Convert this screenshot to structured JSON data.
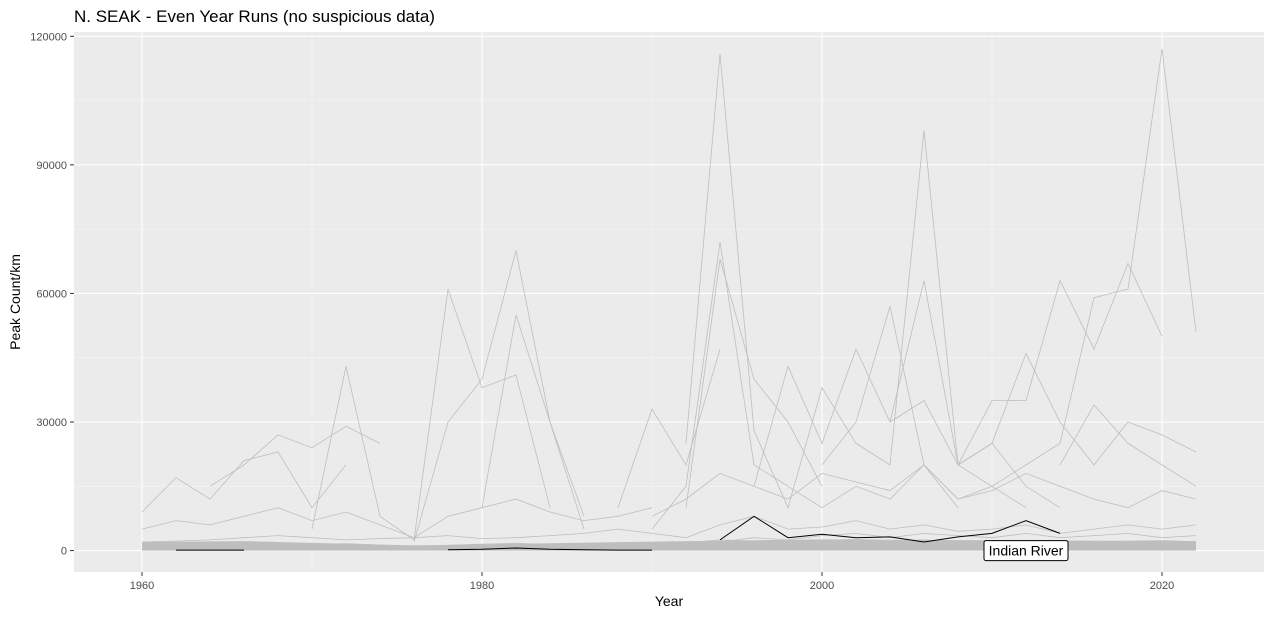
{
  "chart_data": {
    "type": "line",
    "title": "N. SEAK - Even Year Runs (no suspicious data)",
    "xlabel": "Year",
    "ylabel": "Peak Count/km",
    "xlim": [
      1956,
      2026
    ],
    "ylim": [
      -5000,
      121000
    ],
    "x_ticks": [
      1960,
      1980,
      2000,
      2020
    ],
    "x_tick_labels": [
      "1960",
      "1980",
      "2000",
      "2020"
    ],
    "y_ticks": [
      0,
      30000,
      60000,
      90000,
      120000
    ],
    "y_tick_labels": [
      "0",
      "30000",
      "60000",
      "90000",
      "120000"
    ],
    "grid": true,
    "legend": "none",
    "colors": {
      "panel": "#ebebeb",
      "background_series": "#bebebe",
      "highlight_series": "#000000"
    },
    "series": [
      {
        "x": [
          1960,
          1962,
          1964,
          1966,
          1968,
          1970,
          1972,
          1974,
          1976,
          1978,
          1980,
          1982,
          1984,
          1986,
          1988,
          1990,
          1992,
          1994,
          1996,
          1998,
          2000,
          2002,
          2004,
          2006,
          2008,
          2010,
          2012,
          2014,
          2016,
          2018,
          2020,
          2022
        ],
        "y": [
          2000,
          2200,
          2500,
          3000,
          3500,
          3000,
          2500,
          2800,
          3000,
          3500,
          2800,
          3000,
          3500,
          4000,
          5000,
          4000,
          3000,
          6000,
          8000,
          5000,
          5500,
          7000,
          5000,
          6000,
          4500,
          5000,
          6000,
          4000,
          5000,
          6000,
          5000,
          6000
        ]
      },
      {
        "x": [
          1994,
          1996,
          1998,
          2000,
          2002,
          2004,
          2006,
          2008,
          2010,
          2012,
          2014,
          2016,
          2018,
          2020,
          2022
        ],
        "y": [
          2000,
          3000,
          2500,
          3500,
          4000,
          3000,
          4000,
          3500,
          3000,
          4000,
          3000,
          3500,
          4000,
          3000,
          3500
        ]
      },
      {
        "x": [
          1992,
          1994,
          1996,
          1998,
          2000,
          2002,
          2004,
          2006,
          2008,
          2010,
          2012,
          2014
        ],
        "y": [
          25000,
          116000,
          28000,
          10000,
          38000,
          25000,
          20000,
          98000,
          20000,
          25000,
          15000,
          10000
        ]
      },
      {
        "x": [
          2000,
          2002,
          2004,
          2006,
          2008,
          2010,
          2012,
          2014,
          2016,
          2018,
          2020,
          2022
        ],
        "y": [
          10000,
          15000,
          12000,
          20000,
          12000,
          15000,
          20000,
          25000,
          59000,
          61000,
          117000,
          51000
        ]
      },
      {
        "x": [
          1970,
          1972,
          1974,
          1976,
          1978,
          1980,
          1982,
          1984
        ],
        "y": [
          5000,
          43000,
          8000,
          2500,
          61000,
          38000,
          41000,
          10000
        ]
      },
      {
        "x": [
          1976,
          1978,
          1980,
          1982,
          1984,
          1986
        ],
        "y": [
          2000,
          30000,
          40000,
          70000,
          30000,
          8000
        ]
      },
      {
        "x": [
          1980,
          1982,
          1984,
          1986
        ],
        "y": [
          10000,
          55000,
          30000,
          5000
        ]
      },
      {
        "x": [
          1990,
          1992,
          1994,
          1996,
          1998,
          2000
        ],
        "y": [
          5000,
          15000,
          72000,
          20000,
          15000,
          10000
        ]
      },
      {
        "x": [
          1992,
          1994,
          1996,
          1998,
          2000
        ],
        "y": [
          10000,
          68000,
          40000,
          30000,
          15000
        ]
      },
      {
        "x": [
          2000,
          2002,
          2004,
          2006,
          2008
        ],
        "y": [
          20000,
          30000,
          57000,
          20000,
          10000
        ]
      },
      {
        "x": [
          2004,
          2006,
          2008,
          2010,
          2012
        ],
        "y": [
          30000,
          63000,
          20000,
          15000,
          10000
        ]
      },
      {
        "x": [
          2008,
          2010,
          2012,
          2014,
          2016,
          2018,
          2020
        ],
        "y": [
          20000,
          35000,
          35000,
          63000,
          47000,
          67000,
          50000
        ]
      },
      {
        "x": [
          1964,
          1966,
          1968,
          1970,
          1972,
          1974
        ],
        "y": [
          15000,
          20000,
          27000,
          24000,
          29000,
          25000
        ]
      },
      {
        "x": [
          1960,
          1962,
          1964,
          1966,
          1968,
          1970,
          1972
        ],
        "y": [
          9000,
          17000,
          12000,
          21000,
          23000,
          10000,
          20000
        ]
      },
      {
        "x": [
          1988,
          1990,
          1992,
          1994
        ],
        "y": [
          10000,
          33000,
          20000,
          47000
        ]
      },
      {
        "x": [
          2010,
          2012,
          2014,
          2016,
          2018,
          2020,
          2022
        ],
        "y": [
          25000,
          46000,
          30000,
          20000,
          30000,
          27000,
          23000
        ]
      },
      {
        "x": [
          1996,
          1998,
          2000,
          2002,
          2004,
          2006,
          2008,
          2010
        ],
        "y": [
          15000,
          43000,
          25000,
          47000,
          30000,
          35000,
          20000,
          25000
        ]
      },
      {
        "x": [
          2014,
          2016,
          2018,
          2020,
          2022
        ],
        "y": [
          20000,
          34000,
          25000,
          20000,
          15000
        ]
      },
      {
        "x": [
          1960,
          1962,
          1964,
          1966,
          1968,
          1970,
          1972,
          1974,
          1976,
          1978,
          1980,
          1982,
          1984,
          1986,
          1988,
          1990
        ],
        "y": [
          5000,
          7000,
          6000,
          8000,
          10000,
          7000,
          9000,
          6000,
          3000,
          8000,
          10000,
          12000,
          9000,
          7000,
          8000,
          10000
        ]
      },
      {
        "x": [
          1990,
          1992,
          1994,
          1996,
          1998,
          2000,
          2002,
          2004,
          2006,
          2008,
          2010,
          2012,
          2014,
          2016,
          2018,
          2020,
          2022
        ],
        "y": [
          8000,
          12000,
          18000,
          15000,
          12000,
          18000,
          16000,
          14000,
          20000,
          12000,
          14000,
          18000,
          15000,
          12000,
          10000,
          14000,
          12000
        ]
      },
      {
        "x": [
          1960,
          1962,
          1964,
          1966,
          1968,
          1970,
          1972,
          1974,
          1976,
          1978,
          1980,
          1982,
          1984,
          1986,
          1988,
          1990,
          1992,
          1994,
          1996,
          1998,
          2000,
          2002,
          2004,
          2006,
          2008,
          2010,
          2012,
          2014,
          2016,
          2018,
          2020,
          2022
        ],
        "y": [
          1000,
          1200,
          900,
          1500,
          1800,
          1400,
          1600,
          1300,
          800,
          1200,
          1500,
          1700,
          1400,
          1200,
          1300,
          1500,
          1800,
          2500,
          2200,
          2000,
          2400,
          2600,
          2300,
          2500,
          2000,
          2200,
          2400,
          2100,
          2000,
          2200,
          2300,
          2100
        ]
      }
    ],
    "highlight_series": [
      {
        "name": "Indian River",
        "x": [
          1962,
          1964,
          1966
        ],
        "y": [
          100,
          100,
          100
        ]
      },
      {
        "name": "Indian River",
        "x": [
          1978,
          1980,
          1982,
          1984,
          1986,
          1988,
          1990
        ],
        "y": [
          200,
          300,
          600,
          300,
          200,
          100,
          100
        ]
      },
      {
        "name": "Indian River",
        "x": [
          1994,
          1996,
          1998,
          2000,
          2002,
          2004,
          2006,
          2008,
          2010,
          2012,
          2014
        ],
        "y": [
          2500,
          8000,
          3000,
          3800,
          3000,
          3200,
          2000,
          3200,
          4000,
          7000,
          4000
        ]
      }
    ],
    "annotations": [
      {
        "text": "Indian River",
        "x": 2012,
        "y": 0
      }
    ]
  }
}
